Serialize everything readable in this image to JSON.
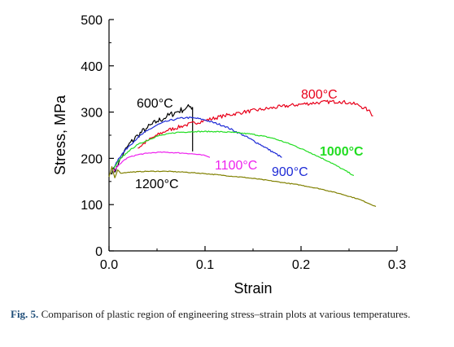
{
  "chart_data": {
    "type": "line",
    "xlabel": "Strain",
    "ylabel": "Stress, MPa",
    "xlim": [
      0.0,
      0.3
    ],
    "ylim": [
      0,
      500
    ],
    "x_ticks": [
      0.0,
      0.1,
      0.2,
      0.3
    ],
    "x_tick_labels": [
      "0.0",
      "0.1",
      "0.2",
      "0.3"
    ],
    "y_ticks": [
      0,
      100,
      200,
      300,
      400,
      500
    ],
    "y_tick_labels": [
      "0",
      "100",
      "200",
      "300",
      "400",
      "500"
    ],
    "grid": false,
    "series": [
      {
        "name": "600°C",
        "color": "#000000",
        "noise": 7,
        "label_bold": false,
        "x": [
          0.002,
          0.004,
          0.006,
          0.008,
          0.01,
          0.015,
          0.02,
          0.03,
          0.04,
          0.05,
          0.06,
          0.07,
          0.08,
          0.085,
          0.087,
          0.087,
          0.087
        ],
        "y": [
          168,
          178,
          170,
          183,
          190,
          210,
          228,
          250,
          266,
          280,
          290,
          300,
          308,
          312,
          310,
          250,
          215
        ]
      },
      {
        "name": "800°C",
        "color": "#e8001a",
        "noise": 4,
        "label_bold": false,
        "x": [
          0.03,
          0.04,
          0.05,
          0.06,
          0.08,
          0.1,
          0.12,
          0.14,
          0.16,
          0.18,
          0.2,
          0.22,
          0.24,
          0.25,
          0.26,
          0.27,
          0.275
        ],
        "y": [
          222,
          238,
          250,
          260,
          272,
          282,
          292,
          300,
          306,
          312,
          317,
          321,
          323,
          320,
          315,
          304,
          292
        ]
      },
      {
        "name": "900°C",
        "color": "#1e2bd6",
        "noise": 2,
        "label_bold": false,
        "x": [
          0.005,
          0.01,
          0.02,
          0.03,
          0.04,
          0.05,
          0.06,
          0.07,
          0.08,
          0.09,
          0.1,
          0.12,
          0.14,
          0.16,
          0.18
        ],
        "y": [
          180,
          200,
          225,
          245,
          260,
          272,
          280,
          285,
          288,
          287,
          283,
          270,
          250,
          227,
          202
        ]
      },
      {
        "name": "1000°C",
        "color": "#22dd22",
        "noise": 1.2,
        "label_bold": true,
        "x": [
          0.005,
          0.01,
          0.02,
          0.03,
          0.05,
          0.07,
          0.09,
          0.11,
          0.13,
          0.15,
          0.17,
          0.19,
          0.21,
          0.23,
          0.255
        ],
        "y": [
          178,
          195,
          215,
          230,
          248,
          256,
          258,
          258,
          256,
          252,
          244,
          230,
          212,
          192,
          163
        ]
      },
      {
        "name": "1100°C",
        "color": "#ee22ee",
        "noise": 1,
        "label_bold": false,
        "x": [
          0.005,
          0.01,
          0.015,
          0.02,
          0.03,
          0.04,
          0.05,
          0.06,
          0.07,
          0.08,
          0.09,
          0.1,
          0.105
        ],
        "y": [
          172,
          185,
          195,
          202,
          208,
          211,
          213,
          213,
          212,
          211,
          209,
          206,
          202
        ]
      },
      {
        "name": "1200°C",
        "color": "#808000",
        "noise": 0.8,
        "label_bold": false,
        "x": [
          0.0,
          0.003,
          0.006,
          0.009,
          0.012,
          0.02,
          0.04,
          0.06,
          0.08,
          0.1,
          0.12,
          0.14,
          0.16,
          0.18,
          0.2,
          0.22,
          0.24,
          0.26,
          0.278
        ],
        "y": [
          160,
          182,
          158,
          175,
          168,
          170,
          172,
          172,
          170,
          167,
          163,
          159,
          154,
          148,
          142,
          134,
          124,
          112,
          96
        ]
      }
    ],
    "annotations": [
      "600°C",
      "800°C",
      "900°C",
      "1000°C",
      "1100°C",
      "1200°C"
    ]
  },
  "caption": {
    "label": "Fig. 5.",
    "text": "Comparison of plastic region of engineering stress–strain plots at various temperatures."
  }
}
